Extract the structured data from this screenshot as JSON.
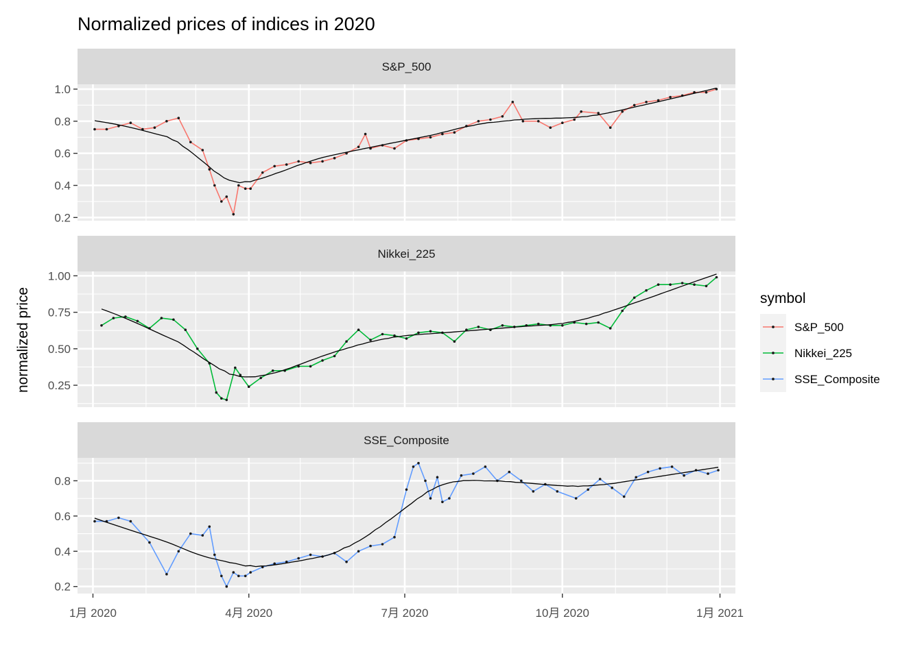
{
  "chart_data": {
    "type": "line",
    "title": "Normalized prices of indices in 2020",
    "xlabel": "",
    "ylabel": "normalized price",
    "x_tick_labels": [
      "1月 2020",
      "4月 2020",
      "7月 2020",
      "10月 2020",
      "1月 2021"
    ],
    "x_ticks": [
      "2020-01-01",
      "2020-04-01",
      "2020-07-01",
      "2020-10-01",
      "2021-01-01"
    ],
    "xlim": [
      "2019-12-23",
      "2021-01-10"
    ],
    "legend": {
      "title": "symbol",
      "position": "right"
    },
    "colors": {
      "S&P_500": "#F8766D",
      "Nikkei_225": "#00BA38",
      "SSE_Composite": "#619CFF",
      "smooth": "#000000",
      "panel_bg": "#EBEBEB",
      "strip_bg": "#D9D9D9",
      "grid": "#FFFFFF"
    },
    "smooth_line": "loess",
    "facets": [
      {
        "name": "S&P_500",
        "ylim": [
          0.18,
          1.03
        ],
        "y_ticks": [
          0.2,
          0.4,
          0.6,
          0.8,
          1.0
        ],
        "y_tick_labels": [
          "0.2",
          "0.4",
          "0.6",
          "0.8",
          "1.0"
        ],
        "x": [
          "2020-01-02",
          "2020-01-09",
          "2020-01-16",
          "2020-01-23",
          "2020-01-30",
          "2020-02-06",
          "2020-02-13",
          "2020-02-20",
          "2020-02-27",
          "2020-03-05",
          "2020-03-09",
          "2020-03-12",
          "2020-03-16",
          "2020-03-19",
          "2020-03-23",
          "2020-03-26",
          "2020-03-30",
          "2020-04-02",
          "2020-04-09",
          "2020-04-16",
          "2020-04-23",
          "2020-04-30",
          "2020-05-07",
          "2020-05-14",
          "2020-05-21",
          "2020-05-28",
          "2020-06-04",
          "2020-06-08",
          "2020-06-11",
          "2020-06-18",
          "2020-06-25",
          "2020-07-02",
          "2020-07-09",
          "2020-07-16",
          "2020-07-23",
          "2020-07-30",
          "2020-08-06",
          "2020-08-13",
          "2020-08-20",
          "2020-08-27",
          "2020-09-02",
          "2020-09-08",
          "2020-09-17",
          "2020-09-24",
          "2020-10-01",
          "2020-10-08",
          "2020-10-12",
          "2020-10-22",
          "2020-10-29",
          "2020-11-05",
          "2020-11-12",
          "2020-11-19",
          "2020-11-26",
          "2020-12-03",
          "2020-12-10",
          "2020-12-17",
          "2020-12-24",
          "2020-12-30"
        ],
        "y": [
          0.75,
          0.75,
          0.77,
          0.79,
          0.75,
          0.76,
          0.8,
          0.82,
          0.67,
          0.62,
          0.5,
          0.4,
          0.3,
          0.33,
          0.22,
          0.4,
          0.38,
          0.38,
          0.48,
          0.52,
          0.53,
          0.55,
          0.54,
          0.55,
          0.57,
          0.6,
          0.64,
          0.72,
          0.63,
          0.65,
          0.63,
          0.68,
          0.69,
          0.7,
          0.72,
          0.73,
          0.77,
          0.8,
          0.81,
          0.83,
          0.92,
          0.8,
          0.8,
          0.76,
          0.79,
          0.81,
          0.86,
          0.85,
          0.76,
          0.86,
          0.9,
          0.92,
          0.93,
          0.95,
          0.96,
          0.98,
          0.98,
          1.0
        ]
      },
      {
        "name": "Nikkei_225",
        "ylim": [
          0.1,
          1.03
        ],
        "y_ticks": [
          0.25,
          0.5,
          0.75,
          1.0
        ],
        "y_tick_labels": [
          "0.25",
          "0.50",
          "0.75",
          "1.00"
        ],
        "x": [
          "2020-01-06",
          "2020-01-13",
          "2020-01-20",
          "2020-01-27",
          "2020-02-03",
          "2020-02-10",
          "2020-02-17",
          "2020-02-24",
          "2020-03-02",
          "2020-03-09",
          "2020-03-13",
          "2020-03-16",
          "2020-03-19",
          "2020-03-24",
          "2020-03-27",
          "2020-04-01",
          "2020-04-08",
          "2020-04-15",
          "2020-04-22",
          "2020-04-30",
          "2020-05-07",
          "2020-05-14",
          "2020-05-21",
          "2020-05-28",
          "2020-06-04",
          "2020-06-11",
          "2020-06-18",
          "2020-06-25",
          "2020-07-02",
          "2020-07-09",
          "2020-07-16",
          "2020-07-23",
          "2020-07-30",
          "2020-08-06",
          "2020-08-13",
          "2020-08-20",
          "2020-08-27",
          "2020-09-03",
          "2020-09-10",
          "2020-09-17",
          "2020-09-24",
          "2020-10-01",
          "2020-10-08",
          "2020-10-15",
          "2020-10-22",
          "2020-10-29",
          "2020-11-05",
          "2020-11-12",
          "2020-11-19",
          "2020-11-26",
          "2020-12-03",
          "2020-12-10",
          "2020-12-17",
          "2020-12-24",
          "2020-12-30"
        ],
        "y": [
          0.66,
          0.71,
          0.72,
          0.69,
          0.64,
          0.71,
          0.7,
          0.63,
          0.5,
          0.4,
          0.2,
          0.16,
          0.15,
          0.37,
          0.32,
          0.24,
          0.3,
          0.35,
          0.35,
          0.38,
          0.38,
          0.42,
          0.45,
          0.55,
          0.63,
          0.56,
          0.6,
          0.59,
          0.57,
          0.61,
          0.62,
          0.61,
          0.55,
          0.63,
          0.65,
          0.63,
          0.66,
          0.65,
          0.66,
          0.67,
          0.66,
          0.66,
          0.68,
          0.67,
          0.68,
          0.64,
          0.76,
          0.85,
          0.9,
          0.94,
          0.94,
          0.95,
          0.94,
          0.93,
          0.99
        ]
      },
      {
        "name": "SSE_Composite",
        "ylim": [
          0.16,
          0.93
        ],
        "y_ticks": [
          0.2,
          0.4,
          0.6,
          0.8
        ],
        "y_tick_labels": [
          "0.2",
          "0.4",
          "0.6",
          "0.8"
        ],
        "x": [
          "2020-01-02",
          "2020-01-09",
          "2020-01-16",
          "2020-01-23",
          "2020-02-03",
          "2020-02-13",
          "2020-02-20",
          "2020-02-27",
          "2020-03-05",
          "2020-03-09",
          "2020-03-12",
          "2020-03-16",
          "2020-03-19",
          "2020-03-23",
          "2020-03-26",
          "2020-03-30",
          "2020-04-02",
          "2020-04-09",
          "2020-04-16",
          "2020-04-23",
          "2020-04-30",
          "2020-05-07",
          "2020-05-14",
          "2020-05-21",
          "2020-05-28",
          "2020-06-04",
          "2020-06-11",
          "2020-06-18",
          "2020-06-25",
          "2020-07-02",
          "2020-07-06",
          "2020-07-09",
          "2020-07-13",
          "2020-07-16",
          "2020-07-20",
          "2020-07-23",
          "2020-07-27",
          "2020-08-03",
          "2020-08-10",
          "2020-08-17",
          "2020-08-24",
          "2020-08-31",
          "2020-09-07",
          "2020-09-14",
          "2020-09-21",
          "2020-09-28",
          "2020-10-09",
          "2020-10-16",
          "2020-10-23",
          "2020-10-30",
          "2020-11-06",
          "2020-11-13",
          "2020-11-20",
          "2020-11-27",
          "2020-12-04",
          "2020-12-11",
          "2020-12-18",
          "2020-12-25",
          "2020-12-31"
        ],
        "y": [
          0.57,
          0.57,
          0.59,
          0.57,
          0.45,
          0.27,
          0.4,
          0.5,
          0.49,
          0.54,
          0.38,
          0.26,
          0.2,
          0.28,
          0.26,
          0.26,
          0.28,
          0.31,
          0.33,
          0.34,
          0.36,
          0.38,
          0.37,
          0.39,
          0.34,
          0.4,
          0.43,
          0.44,
          0.48,
          0.75,
          0.88,
          0.9,
          0.8,
          0.7,
          0.82,
          0.68,
          0.7,
          0.83,
          0.84,
          0.88,
          0.8,
          0.85,
          0.8,
          0.74,
          0.78,
          0.74,
          0.7,
          0.75,
          0.81,
          0.76,
          0.71,
          0.82,
          0.85,
          0.87,
          0.88,
          0.83,
          0.86,
          0.84,
          0.86
        ]
      }
    ]
  }
}
